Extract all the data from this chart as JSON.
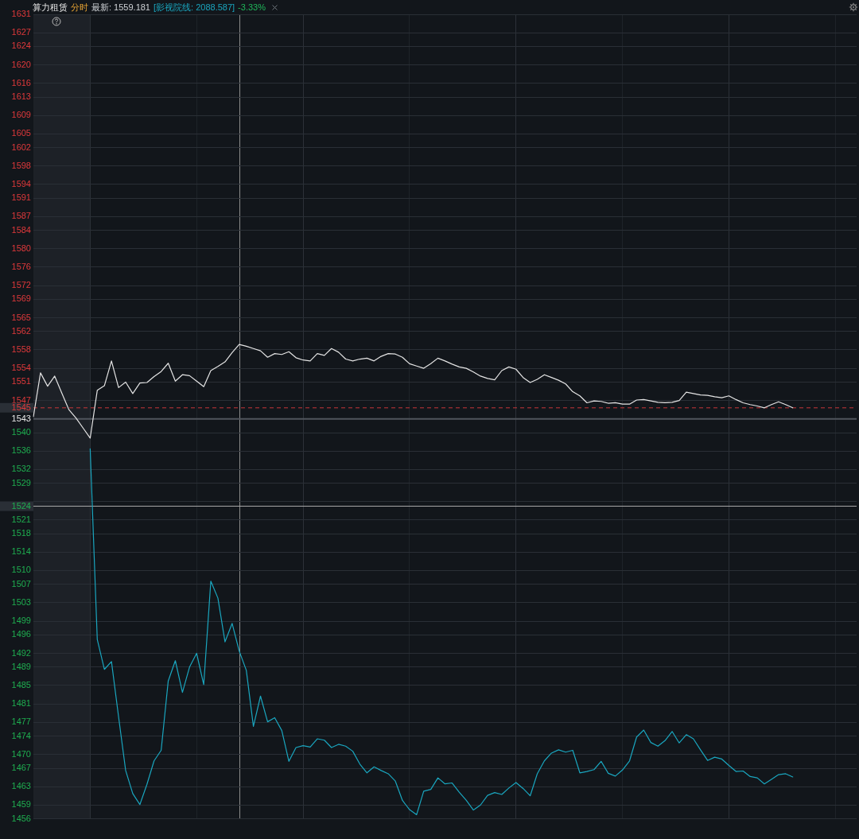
{
  "chart_data": {
    "type": "line",
    "title": "算力租赁",
    "subtitle": "分时",
    "annotations": [
      "最新: 1559.181",
      "[影视院线: 2088.587]",
      "-3.33%"
    ],
    "categories": [
      null,
      null,
      null,
      null,
      null,
      null,
      null,
      null,
      null,
      null,
      null,
      null,
      null,
      null,
      null,
      null,
      null,
      null,
      null,
      null,
      null,
      null,
      null,
      null,
      null,
      null,
      null,
      null,
      null,
      null,
      null,
      null,
      null,
      null,
      null,
      null,
      null,
      null,
      null,
      null,
      null,
      null,
      null,
      null,
      null,
      null,
      null,
      null,
      null,
      null,
      null,
      null,
      null,
      null,
      null,
      null,
      null,
      null,
      null,
      null,
      null,
      null,
      null,
      null,
      null,
      null,
      null,
      null,
      null,
      null,
      null,
      null,
      null,
      null,
      null,
      null,
      null,
      null,
      null,
      null,
      null,
      null,
      null,
      null,
      null,
      null,
      null,
      null,
      null,
      null,
      null,
      null,
      null,
      null,
      null,
      null,
      null,
      null,
      null,
      null,
      null,
      null,
      null,
      null,
      null,
      null,
      null,
      null,
      null,
      null,
      null,
      null,
      null,
      null,
      null,
      null,
      null
    ],
    "series": [
      {
        "color": "#e4e4e4",
        "values": [
          1543.5,
          1553.0,
          1550.1,
          1552.3,
          1548.6,
          1545.0,
          1543.2,
          1541.0,
          1538.8,
          1549.2,
          1550.2,
          1555.6,
          1549.8,
          1551.0,
          1548.5,
          1550.8,
          1550.9,
          1552.2,
          1553.3,
          1555.1,
          1551.2,
          1552.6,
          1552.4,
          1551.2,
          1550.0,
          1553.5,
          1554.4,
          1555.4,
          1557.4,
          1559.2,
          1558.8,
          1558.3,
          1557.8,
          1556.4,
          1557.2,
          1557.0,
          1557.6,
          1556.3,
          1555.8,
          1555.6,
          1557.2,
          1556.8,
          1558.3,
          1557.5,
          1556.0,
          1555.6,
          1556.0,
          1556.2,
          1555.6,
          1556.6,
          1557.2,
          1557.1,
          1556.4,
          1555.0,
          1554.5,
          1554.0,
          1555.0,
          1556.2,
          1555.6,
          1554.9,
          1554.3,
          1554.0,
          1553.2,
          1552.3,
          1551.8,
          1551.5,
          1553.5,
          1554.3,
          1553.8,
          1552.0,
          1550.9,
          1551.6,
          1552.6,
          1552.0,
          1551.4,
          1550.6,
          1548.9,
          1548.0,
          1546.5,
          1546.9,
          1546.8,
          1546.4,
          1546.5,
          1546.2,
          1546.2,
          1547.1,
          1547.2,
          1546.9,
          1546.6,
          1546.5,
          1546.6,
          1547.0,
          1548.8,
          1548.5,
          1548.2,
          1548.1,
          1547.8,
          1547.6,
          1548.0,
          1547.2,
          1546.5,
          1546.1,
          1545.8,
          1545.4,
          1546.1,
          1546.7,
          1546.1,
          1545.4,
          null,
          null,
          null,
          null,
          null,
          null,
          null,
          null,
          null
        ]
      },
      {
        "color": "#1aa6bf",
        "values": [
          null,
          null,
          null,
          null,
          null,
          null,
          null,
          null,
          1536.5,
          1495.0,
          1488.5,
          1490.2,
          1478.2,
          1466.5,
          1461.5,
          1459.1,
          1463.5,
          1468.6,
          1470.9,
          1486.0,
          1490.4,
          1483.5,
          1489.0,
          1492.0,
          1485.2,
          1507.7,
          1504.0,
          1494.5,
          1498.5,
          1492.5,
          1488.3,
          1476.1,
          1482.7,
          1477.1,
          1478.0,
          1475.2,
          1468.5,
          1471.5,
          1471.9,
          1471.6,
          1473.4,
          1473.1,
          1471.5,
          1472.2,
          1471.8,
          1470.7,
          1467.9,
          1466.0,
          1467.3,
          1466.5,
          1465.8,
          1464.2,
          1460.0,
          1458.0,
          1456.9,
          1462.0,
          1462.4,
          1464.9,
          1463.6,
          1463.8,
          1461.8,
          1460.0,
          1457.9,
          1459.0,
          1461.1,
          1461.7,
          1461.3,
          1462.7,
          1463.9,
          1462.6,
          1461.0,
          1465.8,
          1468.6,
          1470.3,
          1471.0,
          1470.5,
          1470.9,
          1466.0,
          1466.3,
          1466.7,
          1468.5,
          1465.9,
          1465.3,
          1466.6,
          1468.6,
          1473.8,
          1475.3,
          1472.6,
          1471.8,
          1473.0,
          1475.0,
          1472.5,
          1474.3,
          1473.4,
          1471.0,
          1468.7,
          1469.4,
          1469.0,
          1467.6,
          1466.3,
          1466.4,
          1465.2,
          1464.9,
          1463.6,
          1464.6,
          1465.6,
          1465.8,
          1465.1,
          null,
          null,
          null,
          null,
          null,
          null,
          null,
          null,
          null
        ]
      }
    ],
    "ylim": [
      1456,
      1631
    ],
    "yticks": [
      1631,
      1627,
      1624,
      1620,
      1616,
      1613,
      1609,
      1605,
      1602,
      1598,
      1594,
      1591,
      1587,
      1584,
      1580,
      1576,
      1572,
      1569,
      1565,
      1562,
      1558,
      1554,
      1551,
      1547,
      1543,
      1540,
      1536,
      1532,
      1529,
      {
        "value": 1525,
        "label": null
      },
      1521,
      1518,
      1514,
      1510,
      1507,
      1503,
      1499,
      1496,
      1492,
      1489,
      1485,
      1481,
      1477,
      1474,
      1470,
      1467,
      1463,
      1459,
      1456
    ],
    "ref_lines": [
      {
        "axis": "y",
        "value": 1543,
        "color": "#50555d",
        "line_style": "solid"
      },
      {
        "axis": "y",
        "value": 1545.4,
        "label": "1545",
        "color": "#c8383a",
        "line_style": "dashed"
      },
      {
        "axis": "y",
        "value": 1524,
        "label": "1524",
        "color": "#a9a9a9",
        "line_style": "solid"
      }
    ],
    "grid": true
  }
}
